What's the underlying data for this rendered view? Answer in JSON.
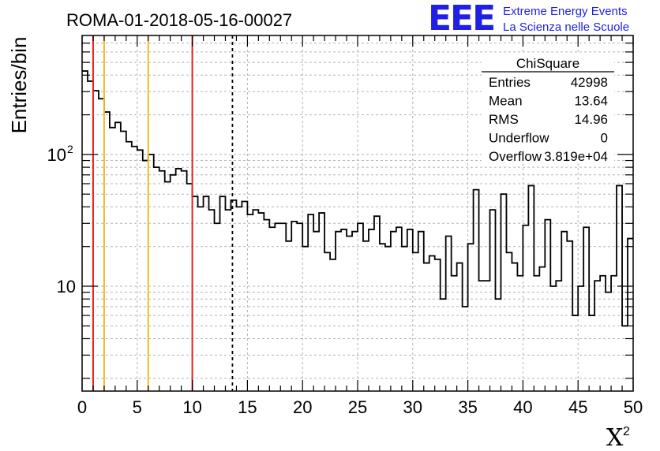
{
  "chart_data": {
    "type": "bar",
    "title": "ROMA-01-2018-05-16-00027",
    "xlabel": "X",
    "xlabel_superscript": "2",
    "ylabel": "Entries/bin",
    "xlim": [
      0,
      50
    ],
    "ylim": [
      1.6,
      800
    ],
    "yscale": "log",
    "grid": true,
    "bin_width": 0.5,
    "x_ticks": [
      "0",
      "5",
      "10",
      "15",
      "20",
      "25",
      "30",
      "35",
      "40",
      "45",
      "50"
    ],
    "y_ticks": [
      {
        "value": 10,
        "label": "10"
      },
      {
        "value": 100,
        "label": "10",
        "sup": "2"
      }
    ],
    "values": [
      430,
      360,
      305,
      265,
      210,
      160,
      175,
      150,
      125,
      115,
      108,
      90,
      100,
      80,
      75,
      62,
      70,
      78,
      75,
      60,
      48,
      40,
      48,
      38,
      30,
      48,
      38,
      45,
      40,
      44,
      35,
      38,
      36,
      32,
      28,
      30,
      30,
      22,
      31,
      30,
      20,
      35,
      26,
      36,
      18,
      16,
      26,
      27,
      24,
      26,
      30,
      22,
      27,
      34,
      21,
      20,
      26,
      28,
      20,
      27,
      18,
      26,
      15,
      17,
      16,
      8,
      24,
      12,
      15,
      7,
      21,
      54,
      11,
      11,
      38,
      8,
      50,
      18,
      15,
      12,
      29,
      58,
      12,
      14,
      32,
      10,
      11,
      26,
      22,
      6,
      10,
      28,
      6,
      11,
      12,
      9,
      12,
      58,
      5,
      23
    ],
    "vertical_lines": [
      {
        "x": 1,
        "color": "#e8211f",
        "style": "solid"
      },
      {
        "x": 2,
        "color": "#f5b821",
        "style": "solid"
      },
      {
        "x": 6,
        "color": "#f5b821",
        "style": "solid"
      },
      {
        "x": 10,
        "color": "#e8211f",
        "style": "solid"
      },
      {
        "x": 13.64,
        "color": "#000000",
        "style": "dashed"
      }
    ],
    "stats_box": {
      "title": "ChiSquare",
      "rows": [
        {
          "label": "Entries",
          "value": "42998"
        },
        {
          "label": "Mean",
          "value": "13.64"
        },
        {
          "label": "RMS",
          "value": "14.96"
        },
        {
          "label": "Underflow",
          "value": "0"
        },
        {
          "label": "Overflow",
          "value": "3.819e+04"
        }
      ]
    },
    "logo": {
      "text": "EEE",
      "line1": "Extreme Energy Events",
      "line2": "La Scienza nelle Scuole",
      "color": "#1f1fe6"
    }
  }
}
